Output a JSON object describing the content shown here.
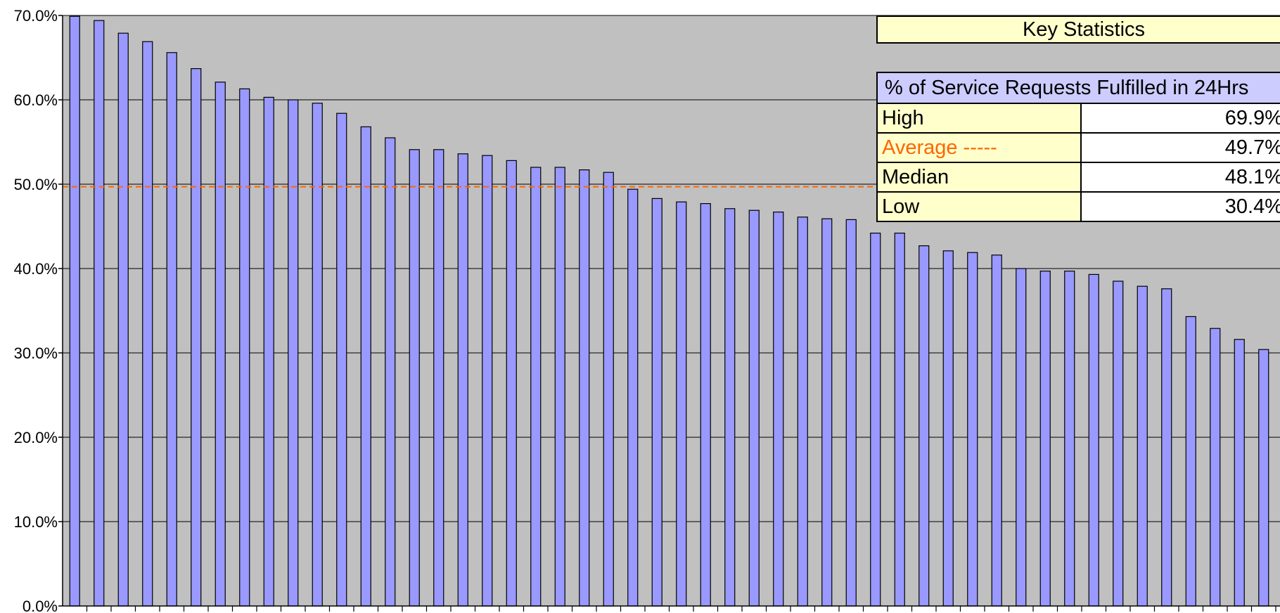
{
  "chart_data": {
    "type": "bar",
    "title": "",
    "xlabel": "",
    "ylabel": "",
    "ylim": [
      0,
      70
    ],
    "y_ticks": [
      "0.0%",
      "10.0%",
      "20.0%",
      "30.0%",
      "40.0%",
      "50.0%",
      "60.0%",
      "70.0%"
    ],
    "grid": true,
    "plot_background": "#c0c0c0",
    "bar_color": "#9999ff",
    "average_line": {
      "value": 49.7,
      "color": "#ff6600",
      "style": "dashed"
    },
    "values": [
      69.9,
      69.4,
      67.9,
      66.9,
      65.6,
      63.7,
      62.1,
      61.3,
      60.3,
      60.0,
      59.6,
      58.4,
      56.8,
      55.5,
      54.1,
      54.1,
      53.6,
      53.4,
      52.8,
      52.0,
      52.0,
      51.7,
      51.4,
      49.4,
      48.3,
      47.9,
      47.7,
      47.1,
      46.9,
      46.7,
      46.1,
      45.9,
      45.8,
      44.2,
      44.2,
      42.7,
      42.1,
      41.9,
      41.6,
      40.0,
      39.7,
      39.7,
      39.3,
      38.5,
      37.9,
      37.6,
      34.3,
      32.9,
      31.6,
      30.4
    ]
  },
  "key_stats": {
    "title": "Key Statistics",
    "header": "% of Service Requests Fulfilled in 24Hrs",
    "rows": [
      {
        "label": "High",
        "value": "69.9%"
      },
      {
        "label": "Average -----",
        "value": "49.7%"
      },
      {
        "label": "Median",
        "value": "48.1%"
      },
      {
        "label": "Low",
        "value": "30.4%"
      }
    ]
  }
}
